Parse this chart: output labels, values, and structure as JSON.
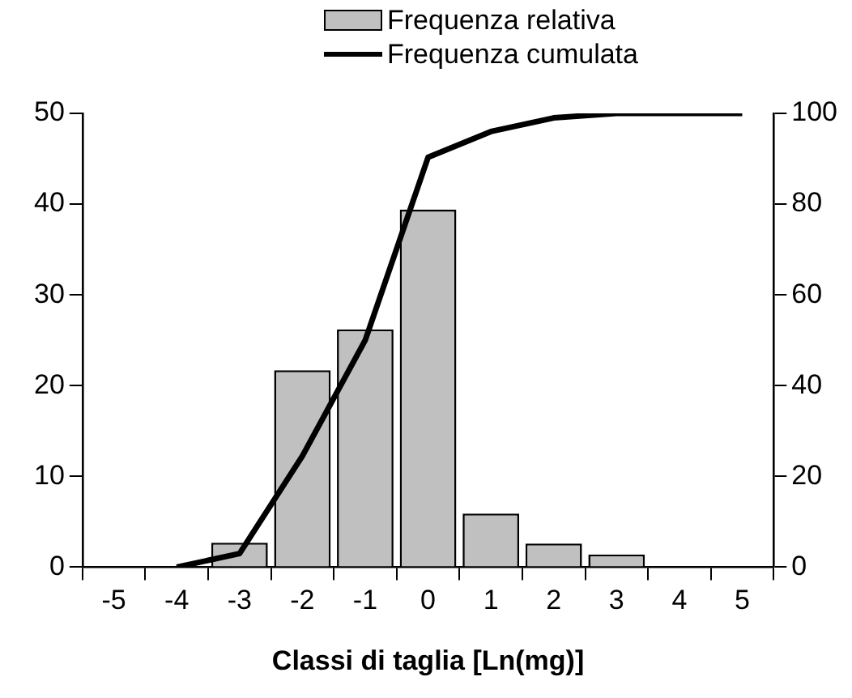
{
  "chart_data": {
    "type": "bar",
    "xlabel": "Classi di taglia [Ln(mg)]",
    "categories": [
      "-5",
      "-4",
      "-3",
      "-2",
      "-1",
      "0",
      "1",
      "2",
      "3",
      "4",
      "5"
    ],
    "series": [
      {
        "name": "Frequenza relativa",
        "color": "#c0c0c0",
        "values": [
          0,
          0,
          2.7,
          21.7,
          26.2,
          39.4,
          5.9,
          2.6,
          1.4,
          0,
          0
        ]
      },
      {
        "name": "Frequenza cumulata",
        "type": "line",
        "axis": "y2",
        "color": "#000000",
        "values": [
          null,
          0,
          3,
          24.5,
          50,
          90.3,
          96,
          99,
          100,
          100,
          100
        ]
      }
    ],
    "ylim": [
      0,
      50
    ],
    "yticks": [
      0,
      10,
      20,
      30,
      40,
      50
    ],
    "y2lim": [
      0,
      100
    ],
    "y2ticks": [
      0,
      20,
      40,
      60,
      80,
      100
    ],
    "grid": false,
    "legend": "top",
    "marker": "none"
  }
}
